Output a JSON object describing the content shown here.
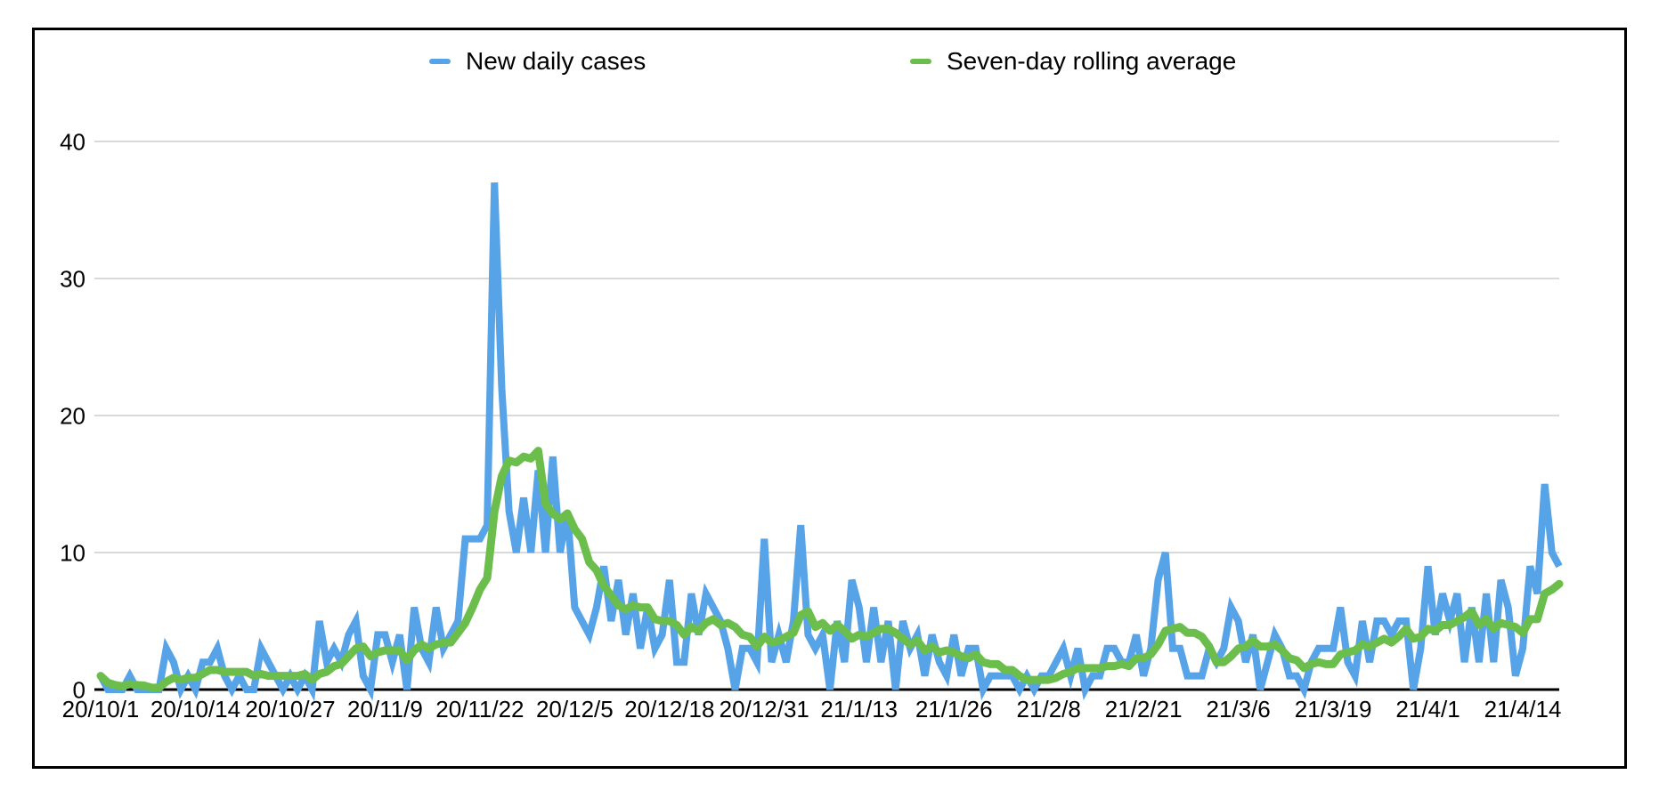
{
  "chart_data": {
    "type": "line",
    "title": "",
    "xlabel": "",
    "ylabel": "",
    "x_start": "20/10/1",
    "x_tick_interval_days": 13,
    "x_tick_labels": [
      "20/10/1",
      "20/10/14",
      "20/10/27",
      "20/11/9",
      "20/11/22",
      "20/12/5",
      "20/12/18",
      "20/12/31",
      "21/1/13",
      "21/1/26",
      "21/2/8",
      "21/2/21",
      "21/3/6",
      "21/3/19",
      "21/4/1",
      "21/4/14"
    ],
    "y_ticks": [
      0,
      10,
      20,
      30,
      40
    ],
    "ylim": [
      0,
      40
    ],
    "grid": "horizontal",
    "legend_position": "top",
    "axis_color": "#000000",
    "gridline_color": "#d9d9d9",
    "series": [
      {
        "name": "New daily cases",
        "color": "#57a3e8",
        "values": [
          1,
          0,
          0,
          0,
          1,
          0,
          0,
          0,
          0,
          3,
          2,
          0,
          1,
          0,
          2,
          2,
          3,
          1,
          0,
          1,
          0,
          0,
          3,
          2,
          1,
          0,
          1,
          0,
          1,
          0,
          5,
          2,
          3,
          2,
          4,
          5,
          1,
          0,
          4,
          4,
          2,
          4,
          0,
          6,
          3,
          2,
          6,
          3,
          4,
          5,
          11,
          11,
          11,
          12,
          37,
          22,
          13,
          10,
          14,
          10,
          16,
          10,
          17,
          10,
          13,
          6,
          5,
          4,
          6,
          9,
          5,
          8,
          4,
          7,
          3,
          6,
          3,
          4,
          8,
          2,
          2,
          7,
          4,
          7,
          6,
          5,
          3,
          0,
          3,
          3,
          2,
          11,
          2,
          4,
          2,
          5,
          12,
          4,
          3,
          4,
          0,
          5,
          2,
          8,
          6,
          2,
          6,
          2,
          5,
          0,
          5,
          3,
          4,
          1,
          4,
          2,
          1,
          4,
          1,
          3,
          3,
          0,
          1,
          1,
          1,
          1,
          0,
          1,
          0,
          1,
          1,
          2,
          3,
          1,
          3,
          0,
          1,
          1,
          3,
          3,
          2,
          2,
          4,
          1,
          3,
          8,
          10,
          3,
          3,
          1,
          1,
          1,
          3,
          2,
          3,
          6,
          5,
          2,
          4,
          0,
          2,
          4,
          3,
          1,
          1,
          0,
          2,
          3,
          3,
          3,
          6,
          2,
          1,
          5,
          2,
          5,
          5,
          4,
          5,
          5,
          0,
          3,
          9,
          4,
          7,
          5,
          7,
          2,
          6,
          2,
          7,
          2,
          8,
          6,
          1,
          3,
          9,
          7,
          15,
          10,
          9
        ]
      },
      {
        "name": "Seven-day rolling average",
        "color": "#6cbe4c",
        "values": [
          1,
          0.5,
          0.33,
          0.25,
          0.4,
          0.33,
          0.29,
          0.14,
          0.14,
          0.57,
          0.86,
          0.71,
          0.86,
          0.86,
          1.14,
          1.43,
          1.43,
          1.29,
          1.29,
          1.29,
          1.29,
          1,
          1.14,
          1,
          1,
          1,
          1,
          1,
          1.14,
          0.71,
          1.14,
          1.29,
          1.71,
          1.86,
          2.43,
          3,
          3.14,
          2.43,
          2.71,
          2.86,
          2.86,
          2.86,
          2.14,
          2.86,
          3.29,
          3,
          3.29,
          3.43,
          3.43,
          4.14,
          4.86,
          6,
          7.29,
          8.14,
          13,
          15.57,
          16.71,
          16.57,
          17,
          16.86,
          17.43,
          13.57,
          12.86,
          12.43,
          12.86,
          11.71,
          11,
          9.29,
          8.71,
          7.57,
          6.86,
          6.14,
          5.86,
          6.14,
          6,
          6,
          5.14,
          5,
          5,
          4.71,
          4,
          4.57,
          4.29,
          4.86,
          5.14,
          4.71,
          4.86,
          4.57,
          4,
          3.86,
          3.14,
          3.86,
          3.43,
          3.57,
          3.86,
          4.14,
          5.43,
          5.71,
          4.57,
          4.86,
          4.29,
          4.71,
          4.29,
          3.71,
          4,
          3.86,
          4.14,
          4.43,
          4.43,
          4.14,
          3.71,
          3.29,
          3.57,
          2.86,
          3.14,
          2.71,
          2.86,
          2.71,
          2.43,
          2.29,
          2.57,
          2,
          1.86,
          1.86,
          1.43,
          1.43,
          1,
          0.71,
          0.71,
          0.71,
          0.71,
          0.86,
          1.14,
          1.29,
          1.57,
          1.57,
          1.57,
          1.57,
          1.71,
          1.71,
          1.86,
          1.71,
          2.29,
          2.29,
          2.57,
          3.29,
          4.29,
          4.43,
          4.57,
          4.14,
          4.14,
          3.86,
          3.14,
          2,
          2,
          2.43,
          3,
          3.14,
          3.57,
          3.14,
          3.14,
          3.29,
          2.86,
          2.29,
          2.14,
          1.57,
          1.86,
          2,
          1.86,
          1.86,
          2.57,
          2.71,
          2.86,
          3.29,
          3.14,
          3.43,
          3.71,
          3.43,
          3.86,
          4.43,
          3.71,
          3.86,
          4.43,
          4.29,
          4.71,
          4.71,
          5,
          5.29,
          5.71,
          4.71,
          5.14,
          4.43,
          4.86,
          4.71,
          4.57,
          4.14,
          5.14,
          5.14,
          7,
          7.29,
          7.71
        ]
      }
    ]
  }
}
